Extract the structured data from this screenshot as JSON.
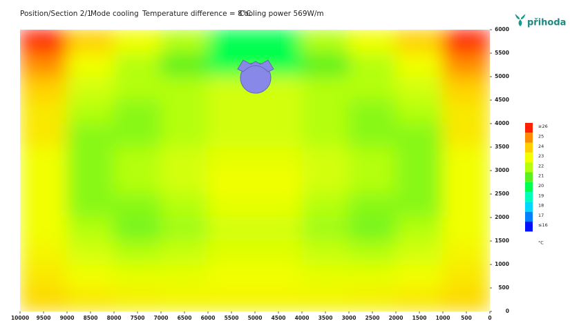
{
  "header": {
    "position": "Position/Section  2/1",
    "mode": "Mode cooling",
    "temperature_difference": "Temperature difference = 8°C",
    "cooling_power": "Cooling power 569W/m",
    "logo": "přihoda"
  },
  "chart_data": {
    "type": "heatmap",
    "x": [
      9500,
      8500,
      7500,
      6500,
      5500,
      4500,
      3500,
      2500,
      1500,
      500
    ],
    "y": [
      5750,
      5250,
      4750,
      4250,
      3750,
      3250,
      2750,
      2250,
      1750,
      1250,
      750,
      250
    ],
    "values": [
      [
        26,
        24,
        23,
        22,
        20,
        20,
        22,
        23,
        24,
        26
      ],
      [
        25,
        23,
        22,
        21,
        20,
        20,
        21,
        22,
        23,
        25
      ],
      [
        24,
        22.5,
        22,
        22,
        22.5,
        22.5,
        22,
        22,
        22.5,
        24
      ],
      [
        23.5,
        22,
        21.5,
        22,
        22.5,
        22.5,
        22,
        21.5,
        22,
        23.5
      ],
      [
        23.5,
        21.5,
        21.5,
        22,
        22.5,
        22.5,
        22,
        21.5,
        21.5,
        23.5
      ],
      [
        23,
        21.5,
        22,
        22.5,
        22.8,
        22.8,
        22.5,
        22,
        21.5,
        23
      ],
      [
        23,
        21.5,
        22,
        22.5,
        23,
        23,
        22.5,
        22,
        21.5,
        23
      ],
      [
        23,
        21.5,
        21.5,
        22,
        22.8,
        22.8,
        22,
        21.5,
        21.5,
        23
      ],
      [
        23,
        22,
        21.3,
        21.8,
        22.5,
        22.5,
        21.8,
        21.3,
        22,
        23
      ],
      [
        23.2,
        22.5,
        22,
        22.3,
        22.7,
        22.7,
        22.3,
        22,
        22.5,
        23.2
      ],
      [
        23.5,
        23,
        22.8,
        22.8,
        23,
        23,
        22.8,
        22.8,
        23,
        23.5
      ],
      [
        23.8,
        23.5,
        23.3,
        23.2,
        23.2,
        23.2,
        23.2,
        23.3,
        23.5,
        23.8
      ]
    ],
    "xlim": [
      10000,
      0
    ],
    "xticks": [
      10000,
      9500,
      9000,
      8500,
      8000,
      7500,
      7000,
      6500,
      6000,
      5500,
      5000,
      4500,
      4000,
      3500,
      3000,
      2500,
      2000,
      1500,
      1000,
      500,
      0
    ],
    "ylim": [
      0,
      6000
    ],
    "yticks": [
      0,
      500,
      1000,
      1500,
      2000,
      2500,
      3000,
      3500,
      4000,
      4500,
      5000,
      5500,
      6000
    ],
    "legend": {
      "labels": [
        "≥26",
        "25",
        "24",
        "23",
        "22",
        "21",
        "20",
        "19",
        "18",
        "17",
        "≤16"
      ],
      "values": [
        26,
        25,
        24,
        23,
        22,
        21,
        20,
        19,
        18,
        17,
        16
      ],
      "colors": [
        "#ff2000",
        "#ff8c00",
        "#ffd000",
        "#f2ff00",
        "#b4ff10",
        "#5cf020",
        "#00ff50",
        "#00ffb8",
        "#00d8ff",
        "#0080ff",
        "#0010ff"
      ],
      "unit": "°C"
    }
  }
}
